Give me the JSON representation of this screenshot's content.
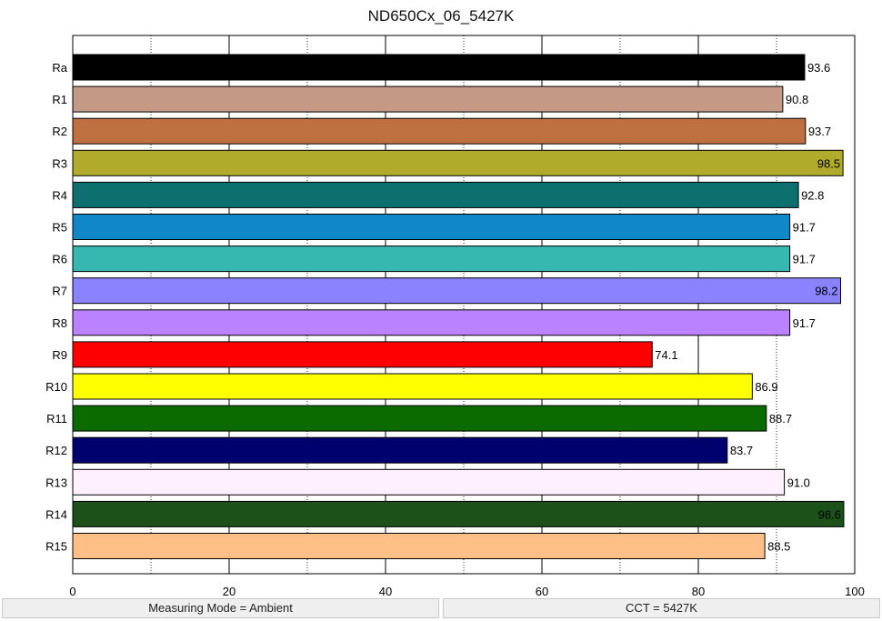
{
  "chart_data": {
    "type": "bar",
    "orientation": "horizontal",
    "title": "ND650Cx_06_5427K",
    "categories": [
      "Ra",
      "R1",
      "R2",
      "R3",
      "R4",
      "R5",
      "R6",
      "R7",
      "R8",
      "R9",
      "R10",
      "R11",
      "R12",
      "R13",
      "R14",
      "R15"
    ],
    "values": [
      93.6,
      90.8,
      93.7,
      98.5,
      92.8,
      91.7,
      91.7,
      98.2,
      91.7,
      74.1,
      86.9,
      88.7,
      83.7,
      91.0,
      98.6,
      88.5
    ],
    "value_labels": [
      "93.6",
      "90.8",
      "93.7",
      "98.5",
      "92.8",
      "91.7",
      "91.7",
      "98.2",
      "91.7",
      "74.1",
      "86.9",
      "88.7",
      "83.7",
      "91.0",
      "98.6",
      "88.5"
    ],
    "colors": [
      "#000000",
      "#c49a86",
      "#bf7040",
      "#b0ab2a",
      "#0e6f6f",
      "#1088c8",
      "#36b8b0",
      "#8a82ff",
      "#bb82ff",
      "#ff0000",
      "#ffff00",
      "#0b6b00",
      "#00006e",
      "#fff0ff",
      "#1c5219",
      "#ffc088"
    ],
    "label_inside": [
      false,
      false,
      false,
      true,
      false,
      false,
      false,
      true,
      false,
      false,
      false,
      false,
      false,
      false,
      true,
      false
    ],
    "xlim": [
      0,
      100
    ],
    "x_ticks": [
      0,
      20,
      40,
      60,
      80,
      100
    ],
    "x_tick_labels": [
      "0",
      "20",
      "40",
      "60",
      "80",
      "100"
    ],
    "grid": true,
    "xlabel": "",
    "ylabel": ""
  },
  "footer": {
    "left": "Measuring Mode = Ambient",
    "right": "CCT = 5427K"
  }
}
